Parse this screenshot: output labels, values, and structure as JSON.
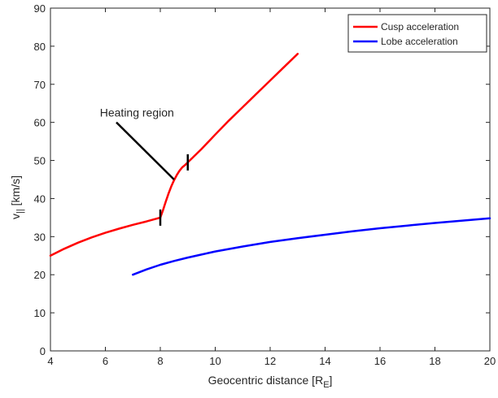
{
  "chart_data": {
    "type": "line",
    "xlabel": "Geocentric distance [R",
    "xlabel_sub": "E",
    "xlabel_end": "]",
    "ylabel": "v",
    "ylabel_sub": "||",
    "ylabel_end": " [km/s]",
    "xlim": [
      4,
      20
    ],
    "ylim": [
      0,
      90
    ],
    "xticks": [
      4,
      6,
      8,
      10,
      12,
      14,
      16,
      18,
      20
    ],
    "yticks": [
      0,
      10,
      20,
      30,
      40,
      50,
      60,
      70,
      80,
      90
    ],
    "grid": false,
    "legend_position": "top-right",
    "series": [
      {
        "name": "Cusp acceleration",
        "color": "#ff0000",
        "x": [
          4.0,
          4.5,
          5.0,
          5.5,
          6.0,
          6.5,
          7.0,
          7.5,
          8.0,
          8.1,
          8.2,
          8.3,
          8.4,
          8.5,
          8.6,
          8.7,
          8.8,
          8.9,
          9.0,
          9.5,
          10.0,
          10.5,
          11.0,
          11.5,
          12.0,
          12.5,
          13.0
        ],
        "y": [
          25.0,
          26.8,
          28.4,
          29.8,
          31.0,
          32.1,
          33.1,
          34.0,
          35.0,
          37.0,
          39.2,
          41.3,
          43.2,
          44.8,
          46.2,
          47.3,
          48.2,
          48.8,
          49.5,
          53.0,
          56.8,
          60.5,
          64.0,
          67.5,
          71.0,
          74.5,
          78.0
        ]
      },
      {
        "name": "Lobe acceleration",
        "color": "#0000ff",
        "x": [
          7.0,
          7.5,
          8.0,
          8.5,
          9.0,
          9.5,
          10.0,
          11.0,
          12.0,
          13.0,
          14.0,
          15.0,
          16.0,
          17.0,
          18.0,
          19.0,
          20.0
        ],
        "y": [
          20.0,
          21.4,
          22.6,
          23.6,
          24.5,
          25.3,
          26.1,
          27.4,
          28.6,
          29.6,
          30.5,
          31.4,
          32.2,
          32.9,
          33.6,
          34.2,
          34.8
        ]
      }
    ],
    "markers": [
      {
        "x": 8.0,
        "y": 35.0
      },
      {
        "x": 9.0,
        "y": 49.5
      }
    ],
    "annotation": {
      "text": "Heating region",
      "text_x": 5.8,
      "text_y": 61.5,
      "line_from": [
        6.4,
        60.0
      ],
      "line_to": [
        8.5,
        45.0
      ]
    }
  }
}
